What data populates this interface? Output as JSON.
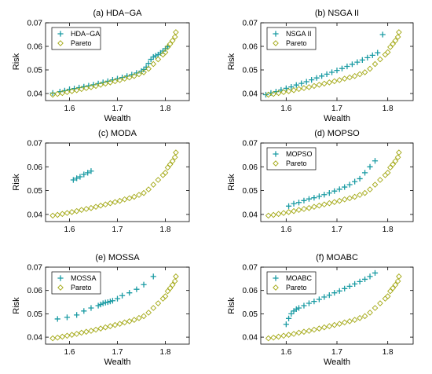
{
  "colors": {
    "method": "#1a9ba3",
    "pareto": "#a3a814",
    "axis": "#000000"
  },
  "chart_data": [
    {
      "type": "scatter",
      "title": "(a) HDA−GA",
      "xlabel": "Wealth",
      "ylabel": "Risk",
      "xlim": [
        1.55,
        1.85
      ],
      "ylim": [
        0.037,
        0.07
      ],
      "xticks": [
        1.6,
        1.7,
        1.8
      ],
      "yticks": [
        0.04,
        0.05,
        0.06,
        0.07
      ],
      "tick_labels_x": [
        "1.6",
        "1.7",
        "1.8"
      ],
      "tick_labels_y": [
        "0.04",
        "0.05",
        "0.06",
        "0.07"
      ],
      "legend": "top-left",
      "series": [
        {
          "name": "HDA−GA",
          "marker": "plus",
          "x": [
            1.565,
            1.58,
            1.59,
            1.6,
            1.61,
            1.62,
            1.63,
            1.64,
            1.65,
            1.66,
            1.67,
            1.68,
            1.69,
            1.7,
            1.71,
            1.72,
            1.73,
            1.74,
            1.75,
            1.755,
            1.76,
            1.765,
            1.77,
            1.775,
            1.78,
            1.785,
            1.79,
            1.795,
            1.8,
            1.805
          ],
          "y": [
            0.0402,
            0.0408,
            0.0412,
            0.0418,
            0.0421,
            0.0425,
            0.0429,
            0.0433,
            0.0437,
            0.0442,
            0.0447,
            0.0452,
            0.0458,
            0.0463,
            0.0468,
            0.0474,
            0.048,
            0.0487,
            0.0495,
            0.0502,
            0.0512,
            0.0528,
            0.0545,
            0.0555,
            0.056,
            0.0565,
            0.0572,
            0.058,
            0.059,
            0.0598
          ]
        },
        {
          "name": "Pareto",
          "marker": "diamond",
          "x": [
            1.565,
            1.575,
            1.585,
            1.595,
            1.605,
            1.615,
            1.625,
            1.635,
            1.645,
            1.655,
            1.665,
            1.675,
            1.685,
            1.695,
            1.705,
            1.715,
            1.725,
            1.735,
            1.745,
            1.755,
            1.765,
            1.775,
            1.785,
            1.795,
            1.8,
            1.805,
            1.81,
            1.815,
            1.82,
            1.822
          ],
          "y": [
            0.0395,
            0.0398,
            0.0402,
            0.0406,
            0.041,
            0.0414,
            0.0419,
            0.0423,
            0.0427,
            0.0432,
            0.0437,
            0.0442,
            0.0447,
            0.0452,
            0.0457,
            0.0463,
            0.0468,
            0.0474,
            0.0482,
            0.049,
            0.0505,
            0.0525,
            0.0545,
            0.0565,
            0.0575,
            0.0597,
            0.061,
            0.0624,
            0.064,
            0.066
          ]
        }
      ]
    },
    {
      "type": "scatter",
      "title": "(b) NSGA II",
      "xlabel": "Wealth",
      "ylabel": "Risk",
      "xlim": [
        1.55,
        1.85
      ],
      "ylim": [
        0.037,
        0.07
      ],
      "xticks": [
        1.6,
        1.7,
        1.8
      ],
      "yticks": [
        0.04,
        0.05,
        0.06,
        0.07
      ],
      "tick_labels_x": [
        "1.6",
        "1.7",
        "1.8"
      ],
      "tick_labels_y": [
        "0.04",
        "0.05",
        "0.06",
        "0.07"
      ],
      "legend": "top-left",
      "series": [
        {
          "name": "NSGA II",
          "marker": "plus",
          "x": [
            1.56,
            1.57,
            1.58,
            1.59,
            1.6,
            1.61,
            1.62,
            1.63,
            1.64,
            1.65,
            1.66,
            1.67,
            1.68,
            1.69,
            1.7,
            1.71,
            1.72,
            1.73,
            1.74,
            1.75,
            1.76,
            1.77,
            1.78,
            1.79
          ],
          "y": [
            0.0395,
            0.0402,
            0.0408,
            0.0415,
            0.0422,
            0.0428,
            0.0436,
            0.0443,
            0.045,
            0.0458,
            0.0466,
            0.0474,
            0.0482,
            0.049,
            0.0498,
            0.0506,
            0.0515,
            0.0524,
            0.0533,
            0.0542,
            0.0552,
            0.0562,
            0.0573,
            0.065
          ]
        },
        {
          "name": "Pareto",
          "marker": "diamond",
          "x": [
            1.565,
            1.575,
            1.585,
            1.595,
            1.605,
            1.615,
            1.625,
            1.635,
            1.645,
            1.655,
            1.665,
            1.675,
            1.685,
            1.695,
            1.705,
            1.715,
            1.725,
            1.735,
            1.745,
            1.755,
            1.765,
            1.775,
            1.785,
            1.795,
            1.8,
            1.805,
            1.81,
            1.815,
            1.82,
            1.822
          ],
          "y": [
            0.0395,
            0.0398,
            0.0402,
            0.0406,
            0.041,
            0.0414,
            0.0419,
            0.0423,
            0.0427,
            0.0432,
            0.0437,
            0.0442,
            0.0447,
            0.0452,
            0.0457,
            0.0463,
            0.0468,
            0.0474,
            0.0482,
            0.049,
            0.0505,
            0.0525,
            0.0545,
            0.0565,
            0.0575,
            0.0597,
            0.061,
            0.0624,
            0.064,
            0.066
          ]
        }
      ]
    },
    {
      "type": "scatter",
      "title": "(c) MODA",
      "xlabel": "",
      "ylabel": "Risk",
      "xlim": [
        1.55,
        1.85
      ],
      "ylim": [
        0.037,
        0.07
      ],
      "xticks": [
        1.6,
        1.7,
        1.8
      ],
      "yticks": [
        0.04,
        0.05,
        0.06,
        0.07
      ],
      "tick_labels_x": [
        "1.6",
        "1.7",
        "1.8"
      ],
      "tick_labels_y": [
        "0.04",
        "0.05",
        "0.06",
        "0.07"
      ],
      "legend": "none",
      "series": [
        {
          "name": "",
          "marker": "plus",
          "x": [
            1.608,
            1.615,
            1.622,
            1.63,
            1.638,
            1.645
          ],
          "y": [
            0.0545,
            0.0552,
            0.0558,
            0.0568,
            0.0575,
            0.0582
          ]
        },
        {
          "name": "",
          "marker": "diamond",
          "x": [
            1.565,
            1.575,
            1.585,
            1.595,
            1.605,
            1.615,
            1.625,
            1.635,
            1.645,
            1.655,
            1.665,
            1.675,
            1.685,
            1.695,
            1.705,
            1.715,
            1.725,
            1.735,
            1.745,
            1.755,
            1.765,
            1.775,
            1.785,
            1.795,
            1.8,
            1.805,
            1.81,
            1.815,
            1.82,
            1.822
          ],
          "y": [
            0.0395,
            0.0398,
            0.0402,
            0.0406,
            0.041,
            0.0414,
            0.0419,
            0.0423,
            0.0427,
            0.0432,
            0.0437,
            0.0442,
            0.0447,
            0.0452,
            0.0457,
            0.0463,
            0.0468,
            0.0474,
            0.0482,
            0.049,
            0.0505,
            0.0525,
            0.0545,
            0.0565,
            0.0575,
            0.0597,
            0.061,
            0.0624,
            0.064,
            0.066
          ]
        }
      ]
    },
    {
      "type": "scatter",
      "title": "(d) MOPSO",
      "xlabel": "",
      "ylabel": "Risk",
      "xlim": [
        1.55,
        1.85
      ],
      "ylim": [
        0.037,
        0.07
      ],
      "xticks": [
        1.6,
        1.7,
        1.8
      ],
      "yticks": [
        0.04,
        0.05,
        0.06,
        0.07
      ],
      "tick_labels_x": [
        "1.6",
        "1.7",
        "1.8"
      ],
      "tick_labels_y": [
        "0.04",
        "0.05",
        "0.06",
        "0.07"
      ],
      "legend": "top-left",
      "series": [
        {
          "name": "MOPSO",
          "marker": "plus",
          "x": [
            1.605,
            1.615,
            1.625,
            1.635,
            1.645,
            1.655,
            1.665,
            1.675,
            1.685,
            1.695,
            1.705,
            1.715,
            1.725,
            1.735,
            1.745,
            1.755,
            1.765,
            1.775
          ],
          "y": [
            0.0435,
            0.0445,
            0.045,
            0.0458,
            0.0465,
            0.047,
            0.0476,
            0.0483,
            0.049,
            0.0498,
            0.0506,
            0.0515,
            0.0525,
            0.0538,
            0.055,
            0.0575,
            0.06,
            0.0625
          ]
        },
        {
          "name": "Pareto",
          "marker": "diamond",
          "x": [
            1.565,
            1.575,
            1.585,
            1.595,
            1.605,
            1.615,
            1.625,
            1.635,
            1.645,
            1.655,
            1.665,
            1.675,
            1.685,
            1.695,
            1.705,
            1.715,
            1.725,
            1.735,
            1.745,
            1.755,
            1.765,
            1.775,
            1.785,
            1.795,
            1.8,
            1.805,
            1.81,
            1.815,
            1.82,
            1.822
          ],
          "y": [
            0.0395,
            0.0398,
            0.0402,
            0.0406,
            0.041,
            0.0414,
            0.0419,
            0.0423,
            0.0427,
            0.0432,
            0.0437,
            0.0442,
            0.0447,
            0.0452,
            0.0457,
            0.0463,
            0.0468,
            0.0474,
            0.0482,
            0.049,
            0.0505,
            0.0525,
            0.0545,
            0.0565,
            0.0575,
            0.0597,
            0.061,
            0.0624,
            0.064,
            0.066
          ]
        }
      ]
    },
    {
      "type": "scatter",
      "title": "(e) MOSSA",
      "xlabel": "Wealth",
      "ylabel": "Risk",
      "xlim": [
        1.55,
        1.85
      ],
      "ylim": [
        0.037,
        0.07
      ],
      "xticks": [
        1.6,
        1.7,
        1.8
      ],
      "yticks": [
        0.04,
        0.05,
        0.06,
        0.07
      ],
      "tick_labels_x": [
        "1.6",
        "1.7",
        "1.8"
      ],
      "tick_labels_y": [
        "0.04",
        "0.05",
        "0.06",
        "0.07"
      ],
      "legend": "top-left",
      "series": [
        {
          "name": "MOSSA",
          "marker": "plus",
          "x": [
            1.575,
            1.595,
            1.615,
            1.63,
            1.645,
            1.66,
            1.665,
            1.67,
            1.675,
            1.68,
            1.685,
            1.69,
            1.7,
            1.71,
            1.725,
            1.74,
            1.755,
            1.775
          ],
          "y": [
            0.0478,
            0.0485,
            0.0495,
            0.0512,
            0.0525,
            0.0535,
            0.054,
            0.0545,
            0.0548,
            0.055,
            0.0553,
            0.0556,
            0.0565,
            0.0578,
            0.059,
            0.0605,
            0.0625,
            0.066
          ]
        },
        {
          "name": "Pareto",
          "marker": "diamond",
          "x": [
            1.565,
            1.575,
            1.585,
            1.595,
            1.605,
            1.615,
            1.625,
            1.635,
            1.645,
            1.655,
            1.665,
            1.675,
            1.685,
            1.695,
            1.705,
            1.715,
            1.725,
            1.735,
            1.745,
            1.755,
            1.765,
            1.775,
            1.785,
            1.795,
            1.8,
            1.805,
            1.81,
            1.815,
            1.82,
            1.822
          ],
          "y": [
            0.0395,
            0.0398,
            0.0402,
            0.0406,
            0.041,
            0.0414,
            0.0419,
            0.0423,
            0.0427,
            0.0432,
            0.0437,
            0.0442,
            0.0447,
            0.0452,
            0.0457,
            0.0463,
            0.0468,
            0.0474,
            0.0482,
            0.049,
            0.0505,
            0.0525,
            0.0545,
            0.0565,
            0.0575,
            0.0597,
            0.061,
            0.0624,
            0.064,
            0.066
          ]
        }
      ]
    },
    {
      "type": "scatter",
      "title": "(f) MOABC",
      "xlabel": "Wealth",
      "ylabel": "Risk",
      "xlim": [
        1.55,
        1.85
      ],
      "ylim": [
        0.037,
        0.07
      ],
      "xticks": [
        1.6,
        1.7,
        1.8
      ],
      "yticks": [
        0.04,
        0.05,
        0.06,
        0.07
      ],
      "tick_labels_x": [
        "1.6",
        "1.7",
        "1.8"
      ],
      "tick_labels_y": [
        "0.04",
        "0.05",
        "0.06",
        "0.07"
      ],
      "legend": "top-left",
      "series": [
        {
          "name": "MOABC",
          "marker": "plus",
          "x": [
            1.6,
            1.605,
            1.61,
            1.615,
            1.62,
            1.625,
            1.635,
            1.645,
            1.655,
            1.665,
            1.675,
            1.685,
            1.695,
            1.705,
            1.715,
            1.725,
            1.735,
            1.745,
            1.755,
            1.765,
            1.775
          ],
          "y": [
            0.0455,
            0.048,
            0.05,
            0.0512,
            0.052,
            0.0525,
            0.0535,
            0.0545,
            0.0553,
            0.0562,
            0.0572,
            0.058,
            0.059,
            0.0598,
            0.0608,
            0.0618,
            0.0628,
            0.0638,
            0.0648,
            0.066,
            0.0675
          ]
        },
        {
          "name": "Pareto",
          "marker": "diamond",
          "x": [
            1.565,
            1.575,
            1.585,
            1.595,
            1.605,
            1.615,
            1.625,
            1.635,
            1.645,
            1.655,
            1.665,
            1.675,
            1.685,
            1.695,
            1.705,
            1.715,
            1.725,
            1.735,
            1.745,
            1.755,
            1.765,
            1.775,
            1.785,
            1.795,
            1.8,
            1.805,
            1.81,
            1.815,
            1.82,
            1.822
          ],
          "y": [
            0.0395,
            0.0398,
            0.0402,
            0.0406,
            0.041,
            0.0414,
            0.0419,
            0.0423,
            0.0427,
            0.0432,
            0.0437,
            0.0442,
            0.0447,
            0.0452,
            0.0457,
            0.0463,
            0.0468,
            0.0474,
            0.0482,
            0.049,
            0.0505,
            0.0525,
            0.0545,
            0.0565,
            0.0575,
            0.0597,
            0.061,
            0.0624,
            0.064,
            0.066
          ]
        }
      ]
    }
  ]
}
